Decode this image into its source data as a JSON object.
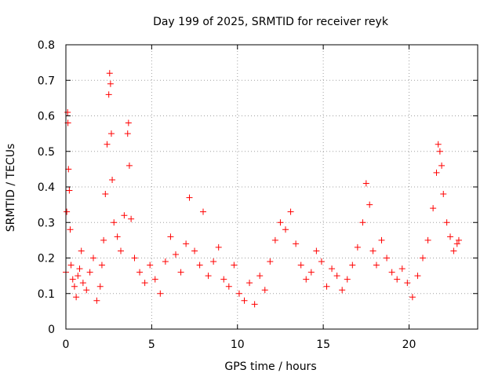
{
  "chart_data": {
    "type": "scatter",
    "title": "Day 199 of 2025, SRMTID for receiver reyk",
    "xlabel": "GPS time / hours",
    "ylabel": "SRMTID / TECUs",
    "xlim": [
      0,
      24
    ],
    "ylim": [
      0,
      0.8
    ],
    "x_ticks": [
      0,
      5,
      10,
      15,
      20
    ],
    "x_tick_labels": [
      "0",
      "5",
      "10",
      "15",
      "20"
    ],
    "y_ticks": [
      0,
      0.1,
      0.2,
      0.3,
      0.4,
      0.5,
      0.6,
      0.7,
      0.8
    ],
    "y_tick_labels": [
      "0",
      "0.1",
      "0.2",
      "0.3",
      "0.4",
      "0.5",
      "0.6",
      "0.7",
      "0.8"
    ],
    "grid": true,
    "marker": "plus",
    "color": "#ff0000",
    "series": [
      {
        "name": "SRMTID",
        "x": [
          0.0,
          0.05,
          0.1,
          0.12,
          0.15,
          0.2,
          0.25,
          0.3,
          0.4,
          0.5,
          0.6,
          0.7,
          0.8,
          0.9,
          1.0,
          1.2,
          1.4,
          1.6,
          1.8,
          2.0,
          2.1,
          2.2,
          2.3,
          2.4,
          2.5,
          2.55,
          2.6,
          2.65,
          2.7,
          2.8,
          3.0,
          3.2,
          3.4,
          3.6,
          3.65,
          3.7,
          3.8,
          4.0,
          4.3,
          4.6,
          4.9,
          5.2,
          5.5,
          5.8,
          6.1,
          6.4,
          6.7,
          7.0,
          7.2,
          7.5,
          7.8,
          8.0,
          8.3,
          8.6,
          8.9,
          9.2,
          9.5,
          9.8,
          10.1,
          10.4,
          10.7,
          11.0,
          11.3,
          11.6,
          11.9,
          12.2,
          12.5,
          12.8,
          13.1,
          13.4,
          13.7,
          14.0,
          14.3,
          14.6,
          14.9,
          15.2,
          15.5,
          15.8,
          16.1,
          16.4,
          16.7,
          17.0,
          17.3,
          17.5,
          17.7,
          17.9,
          18.1,
          18.4,
          18.7,
          19.0,
          19.3,
          19.6,
          19.9,
          20.2,
          20.5,
          20.8,
          21.1,
          21.4,
          21.6,
          21.7,
          21.8,
          21.9,
          22.0,
          22.2,
          22.4,
          22.6,
          22.8,
          22.9
        ],
        "y": [
          0.16,
          0.33,
          0.61,
          0.58,
          0.45,
          0.39,
          0.28,
          0.18,
          0.14,
          0.12,
          0.09,
          0.15,
          0.17,
          0.22,
          0.13,
          0.11,
          0.16,
          0.2,
          0.08,
          0.12,
          0.18,
          0.25,
          0.38,
          0.52,
          0.66,
          0.72,
          0.69,
          0.55,
          0.42,
          0.3,
          0.26,
          0.22,
          0.32,
          0.55,
          0.58,
          0.46,
          0.31,
          0.2,
          0.16,
          0.13,
          0.18,
          0.14,
          0.1,
          0.19,
          0.26,
          0.21,
          0.16,
          0.24,
          0.37,
          0.22,
          0.18,
          0.33,
          0.15,
          0.19,
          0.23,
          0.14,
          0.12,
          0.18,
          0.1,
          0.08,
          0.13,
          0.07,
          0.15,
          0.11,
          0.19,
          0.25,
          0.3,
          0.28,
          0.33,
          0.24,
          0.18,
          0.14,
          0.16,
          0.22,
          0.19,
          0.12,
          0.17,
          0.15,
          0.11,
          0.14,
          0.18,
          0.23,
          0.3,
          0.41,
          0.35,
          0.22,
          0.18,
          0.25,
          0.2,
          0.16,
          0.14,
          0.17,
          0.13,
          0.09,
          0.15,
          0.2,
          0.25,
          0.34,
          0.44,
          0.52,
          0.5,
          0.46,
          0.38,
          0.3,
          0.26,
          0.22,
          0.24,
          0.25
        ]
      }
    ]
  }
}
